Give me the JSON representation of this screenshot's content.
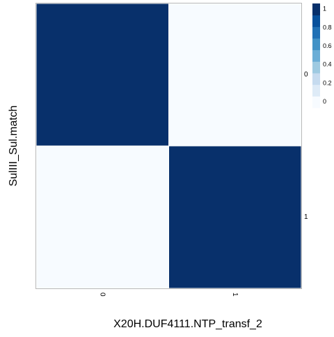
{
  "chart_data": {
    "type": "heatmap",
    "title": "",
    "xlabel": "X20H.DUF4111.NTP_transf_2",
    "ylabel": "SulIII_Sul.match",
    "x_categories": [
      "0",
      "1"
    ],
    "y_categories": [
      "0",
      "1"
    ],
    "values": [
      [
        1,
        0
      ],
      [
        0,
        1
      ]
    ],
    "value_range": [
      0,
      1
    ],
    "colorbar": {
      "ticks": [
        1,
        0.8,
        0.6,
        0.4,
        0.2,
        0
      ],
      "tick_labels": [
        "1",
        "0.8",
        "0.6",
        "0.4",
        "0.2",
        "0"
      ],
      "placement": "right",
      "colors": [
        "#f7fbff",
        "#deebf7",
        "#c6dbef",
        "#9ecae1",
        "#6baed6",
        "#4292c6",
        "#2171b5",
        "#08519c",
        "#08306b"
      ]
    },
    "grid": false,
    "colors": {
      "high": "#08306b",
      "low": "#f7fbff",
      "border": "#b8b8b8"
    }
  }
}
